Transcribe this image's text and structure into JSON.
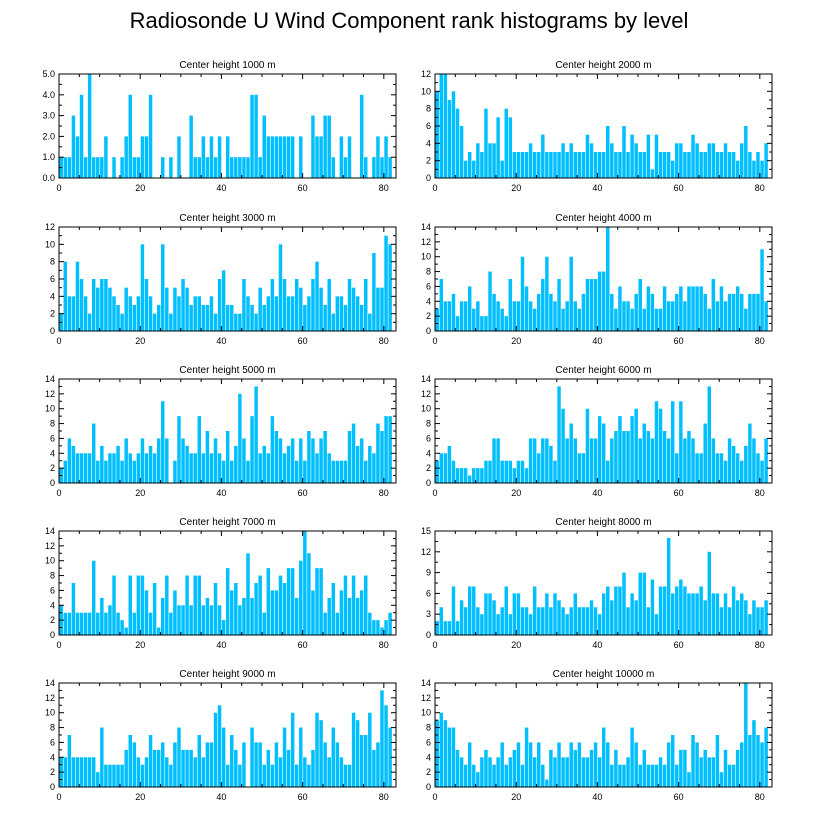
{
  "title": "Radiosonde U Wind Component rank histograms by level",
  "colors": {
    "bar": "#00bfff",
    "bar_edge": "#ffffff",
    "axis": "#000000"
  },
  "chart_data": [
    {
      "type": "bar",
      "title": "Center height 1000 m",
      "xlabel": "",
      "ylabel": "",
      "xlim": [
        0,
        83
      ],
      "ylim": [
        0,
        5
      ],
      "xticks": [
        "0",
        "20",
        "40",
        "60",
        "80"
      ],
      "yticks": [
        "0.0",
        "1.0",
        "2.0",
        "3.0",
        "4.0",
        "5.0"
      ],
      "values": [
        1,
        1,
        1,
        3,
        2,
        4,
        1,
        5,
        1,
        1,
        1,
        2,
        0,
        1,
        0,
        1,
        2,
        4,
        1,
        1,
        2,
        2,
        4,
        0,
        0,
        1,
        0,
        1,
        0,
        2,
        0,
        0,
        3,
        1,
        1,
        2,
        1,
        2,
        1,
        2,
        0,
        2,
        1,
        1,
        1,
        1,
        1,
        4,
        4,
        1,
        3,
        2,
        2,
        2,
        2,
        2,
        2,
        2,
        0,
        2,
        0,
        0,
        3,
        2,
        2,
        3,
        3,
        1,
        0,
        2,
        1,
        2,
        0,
        0,
        4,
        1,
        0,
        1,
        2,
        1,
        2,
        1
      ]
    },
    {
      "type": "bar",
      "title": "Center height 2000 m",
      "xlabel": "",
      "ylabel": "",
      "xlim": [
        0,
        83
      ],
      "ylim": [
        0,
        12
      ],
      "xticks": [
        "0",
        "20",
        "40",
        "60",
        "80"
      ],
      "yticks": [
        "0",
        "2",
        "4",
        "6",
        "8",
        "10",
        "12"
      ],
      "values": [
        10,
        12,
        12,
        9,
        10,
        8,
        6,
        2,
        3,
        2,
        4,
        3,
        8,
        4,
        4,
        7,
        2,
        8,
        7,
        3,
        3,
        3,
        3,
        4,
        3,
        3,
        5,
        3,
        3,
        3,
        3,
        4,
        3,
        4,
        3,
        3,
        3,
        5,
        4,
        3,
        3,
        3,
        6,
        4,
        3,
        3,
        6,
        3,
        5,
        4,
        3,
        3,
        5,
        1,
        5,
        3,
        3,
        3,
        2,
        4,
        4,
        3,
        3,
        5,
        4,
        3,
        3,
        4,
        4,
        3,
        3,
        4,
        3,
        3,
        2,
        4,
        6,
        3,
        2,
        3,
        2,
        4
      ]
    },
    {
      "type": "bar",
      "title": "Center height 3000 m",
      "xlabel": "",
      "ylabel": "",
      "xlim": [
        0,
        83
      ],
      "ylim": [
        0,
        12
      ],
      "xticks": [
        "0",
        "20",
        "40",
        "60",
        "80"
      ],
      "yticks": [
        "0",
        "2",
        "4",
        "6",
        "8",
        "10",
        "12"
      ],
      "values": [
        2,
        8,
        4,
        4,
        8,
        6,
        4,
        2,
        6,
        5,
        6,
        6,
        5,
        4,
        3,
        2,
        5,
        4,
        3,
        4,
        10,
        6,
        4,
        2,
        3,
        10,
        5,
        2,
        5,
        4,
        6,
        5,
        3,
        4,
        4,
        3,
        3,
        4,
        2,
        6,
        7,
        3,
        3,
        2,
        2,
        6,
        4,
        3,
        2,
        5,
        3,
        4,
        6,
        4,
        10,
        6,
        4,
        4,
        6,
        5,
        3,
        4,
        6,
        8,
        5,
        3,
        6,
        2,
        4,
        4,
        3,
        6,
        5,
        4,
        3,
        6,
        2,
        9,
        5,
        5,
        11,
        10
      ]
    },
    {
      "type": "bar",
      "title": "Center height 4000 m",
      "xlabel": "",
      "ylabel": "",
      "xlim": [
        0,
        83
      ],
      "ylim": [
        0,
        14
      ],
      "xticks": [
        "0",
        "20",
        "40",
        "60",
        "80"
      ],
      "yticks": [
        "0",
        "2",
        "4",
        "6",
        "8",
        "10",
        "12",
        "14"
      ],
      "values": [
        3,
        7,
        4,
        4,
        5,
        2,
        4,
        4,
        6,
        3,
        4,
        2,
        2,
        8,
        5,
        4,
        3,
        2,
        7,
        4,
        4,
        10,
        6,
        4,
        3,
        5,
        7,
        10,
        5,
        4,
        7,
        3,
        4,
        10,
        4,
        3,
        5,
        7,
        7,
        7,
        8,
        8,
        14,
        5,
        3,
        6,
        4,
        4,
        3,
        5,
        7,
        3,
        6,
        5,
        3,
        3,
        6,
        4,
        4,
        5,
        6,
        4,
        6,
        6,
        6,
        6,
        5,
        3,
        7,
        4,
        6,
        4,
        5,
        5,
        6,
        5,
        3,
        5,
        5,
        5,
        11,
        4
      ]
    },
    {
      "type": "bar",
      "title": "Center height 5000 m",
      "xlabel": "",
      "ylabel": "",
      "xlim": [
        0,
        83
      ],
      "ylim": [
        0,
        14
      ],
      "xticks": [
        "0",
        "20",
        "40",
        "60",
        "80"
      ],
      "yticks": [
        "0",
        "2",
        "4",
        "6",
        "8",
        "10",
        "12",
        "14"
      ],
      "values": [
        2,
        3,
        6,
        5,
        4,
        4,
        4,
        4,
        8,
        3,
        5,
        3,
        4,
        4,
        5,
        3,
        6,
        4,
        3,
        4,
        6,
        4,
        5,
        4,
        6,
        11,
        6,
        0,
        3,
        9,
        6,
        5,
        4,
        4,
        9,
        4,
        7,
        4,
        6,
        4,
        3,
        7,
        3,
        5,
        12,
        6,
        3,
        9,
        13,
        4,
        5,
        4,
        9,
        7,
        6,
        4,
        5,
        6,
        3,
        6,
        3,
        7,
        6,
        4,
        6,
        7,
        4,
        3,
        3,
        3,
        3,
        7,
        8,
        5,
        6,
        3,
        5,
        4,
        8,
        7,
        9,
        9
      ]
    },
    {
      "type": "bar",
      "title": "Center height 6000 m",
      "xlabel": "",
      "ylabel": "",
      "xlim": [
        0,
        83
      ],
      "ylim": [
        0,
        14
      ],
      "xticks": [
        "0",
        "20",
        "40",
        "60",
        "80"
      ],
      "yticks": [
        "0",
        "2",
        "4",
        "6",
        "8",
        "10",
        "12",
        "14"
      ],
      "values": [
        3,
        4,
        4,
        5,
        3,
        2,
        2,
        2,
        1,
        2,
        2,
        2,
        3,
        3,
        6,
        6,
        3,
        3,
        3,
        2,
        3,
        3,
        2,
        6,
        6,
        4,
        6,
        6,
        5,
        3,
        13,
        10,
        6,
        8,
        6,
        4,
        4,
        10,
        6,
        6,
        9,
        8,
        3,
        6,
        7,
        9,
        7,
        7,
        9,
        10,
        6,
        8,
        7,
        6,
        11,
        10,
        7,
        6,
        11,
        4,
        11,
        6,
        7,
        6,
        4,
        4,
        8,
        13,
        6,
        4,
        4,
        3,
        6,
        5,
        4,
        3,
        5,
        8,
        6,
        4,
        3,
        6
      ]
    },
    {
      "type": "bar",
      "title": "Center height 7000 m",
      "xlabel": "",
      "ylabel": "",
      "xlim": [
        0,
        83
      ],
      "ylim": [
        0,
        14
      ],
      "xticks": [
        "0",
        "20",
        "40",
        "60",
        "80"
      ],
      "yticks": [
        "0",
        "2",
        "4",
        "6",
        "8",
        "10",
        "12",
        "14"
      ],
      "values": [
        4,
        3,
        3,
        7,
        3,
        3,
        3,
        3,
        10,
        3,
        5,
        3,
        4,
        8,
        3,
        2,
        1,
        8,
        3,
        8,
        8,
        6,
        3,
        7,
        1,
        5,
        8,
        3,
        6,
        4,
        4,
        8,
        4,
        8,
        8,
        4,
        5,
        4,
        7,
        4,
        2,
        9,
        6,
        7,
        4,
        5,
        11,
        5,
        7,
        8,
        3,
        9,
        6,
        6,
        8,
        7,
        9,
        9,
        5,
        10,
        14,
        11,
        6,
        9,
        9,
        3,
        5,
        7,
        3,
        6,
        8,
        5,
        8,
        5,
        6,
        8,
        3,
        2,
        2,
        1,
        2,
        3
      ]
    },
    {
      "type": "bar",
      "title": "Center height 8000 m",
      "xlabel": "",
      "ylabel": "",
      "xlim": [
        0,
        83
      ],
      "ylim": [
        0,
        15
      ],
      "xticks": [
        "0",
        "20",
        "40",
        "60",
        "80"
      ],
      "yticks": [
        "0",
        "3",
        "6",
        "9",
        "12",
        "15"
      ],
      "values": [
        2,
        4,
        2,
        2,
        7,
        2,
        5,
        4,
        7,
        7,
        4,
        3,
        6,
        6,
        5,
        3,
        4,
        7,
        3,
        6,
        6,
        4,
        4,
        3,
        7,
        4,
        4,
        6,
        4,
        6,
        5,
        4,
        3,
        4,
        6,
        4,
        4,
        4,
        5,
        4,
        3,
        6,
        7,
        5,
        7,
        7,
        9,
        4,
        6,
        5,
        9,
        9,
        4,
        8,
        3,
        7,
        7,
        14,
        6,
        7,
        8,
        7,
        6,
        6,
        6,
        7,
        5,
        12,
        6,
        6,
        4,
        6,
        4,
        7,
        5,
        6,
        5,
        3,
        5,
        4,
        4,
        5
      ]
    },
    {
      "type": "bar",
      "title": "Center height 9000 m",
      "xlabel": "",
      "ylabel": "",
      "xlim": [
        0,
        83
      ],
      "ylim": [
        0,
        14
      ],
      "xticks": [
        "0",
        "20",
        "40",
        "60",
        "80"
      ],
      "yticks": [
        "0",
        "2",
        "4",
        "6",
        "8",
        "10",
        "12",
        "14"
      ],
      "values": [
        4,
        4,
        7,
        4,
        4,
        4,
        4,
        4,
        4,
        2,
        8,
        3,
        3,
        3,
        3,
        3,
        5,
        7,
        6,
        4,
        3,
        4,
        7,
        5,
        5,
        6,
        4,
        3,
        6,
        8,
        5,
        5,
        5,
        4,
        7,
        4,
        6,
        6,
        10,
        11,
        8,
        3,
        7,
        5,
        3,
        6,
        0,
        8,
        6,
        6,
        3,
        5,
        3,
        6,
        4,
        8,
        5,
        10,
        3,
        8,
        4,
        3,
        5,
        10,
        9,
        6,
        4,
        8,
        6,
        4,
        3,
        3,
        10,
        9,
        7,
        7,
        10,
        5,
        6,
        13,
        11,
        8
      ]
    },
    {
      "type": "bar",
      "title": "Center height 10000 m",
      "xlabel": "",
      "ylabel": "",
      "xlim": [
        0,
        83
      ],
      "ylim": [
        0,
        14
      ],
      "xticks": [
        "0",
        "20",
        "40",
        "60",
        "80"
      ],
      "yticks": [
        "0",
        "2",
        "4",
        "6",
        "8",
        "10",
        "12",
        "14"
      ],
      "values": [
        9,
        10,
        9,
        8,
        8,
        5,
        4,
        3,
        6,
        3,
        2,
        4,
        5,
        4,
        3,
        4,
        6,
        3,
        4,
        5,
        6,
        3,
        8,
        6,
        4,
        6,
        3,
        1,
        5,
        4,
        6,
        4,
        4,
        6,
        5,
        6,
        4,
        4,
        5,
        6,
        4,
        8,
        6,
        3,
        5,
        3,
        3,
        4,
        8,
        6,
        3,
        5,
        3,
        3,
        3,
        4,
        3,
        6,
        7,
        3,
        5,
        5,
        2,
        7,
        6,
        4,
        5,
        4,
        4,
        7,
        2,
        5,
        3,
        3,
        5,
        6,
        14,
        7,
        9,
        7,
        6,
        8
      ]
    }
  ]
}
